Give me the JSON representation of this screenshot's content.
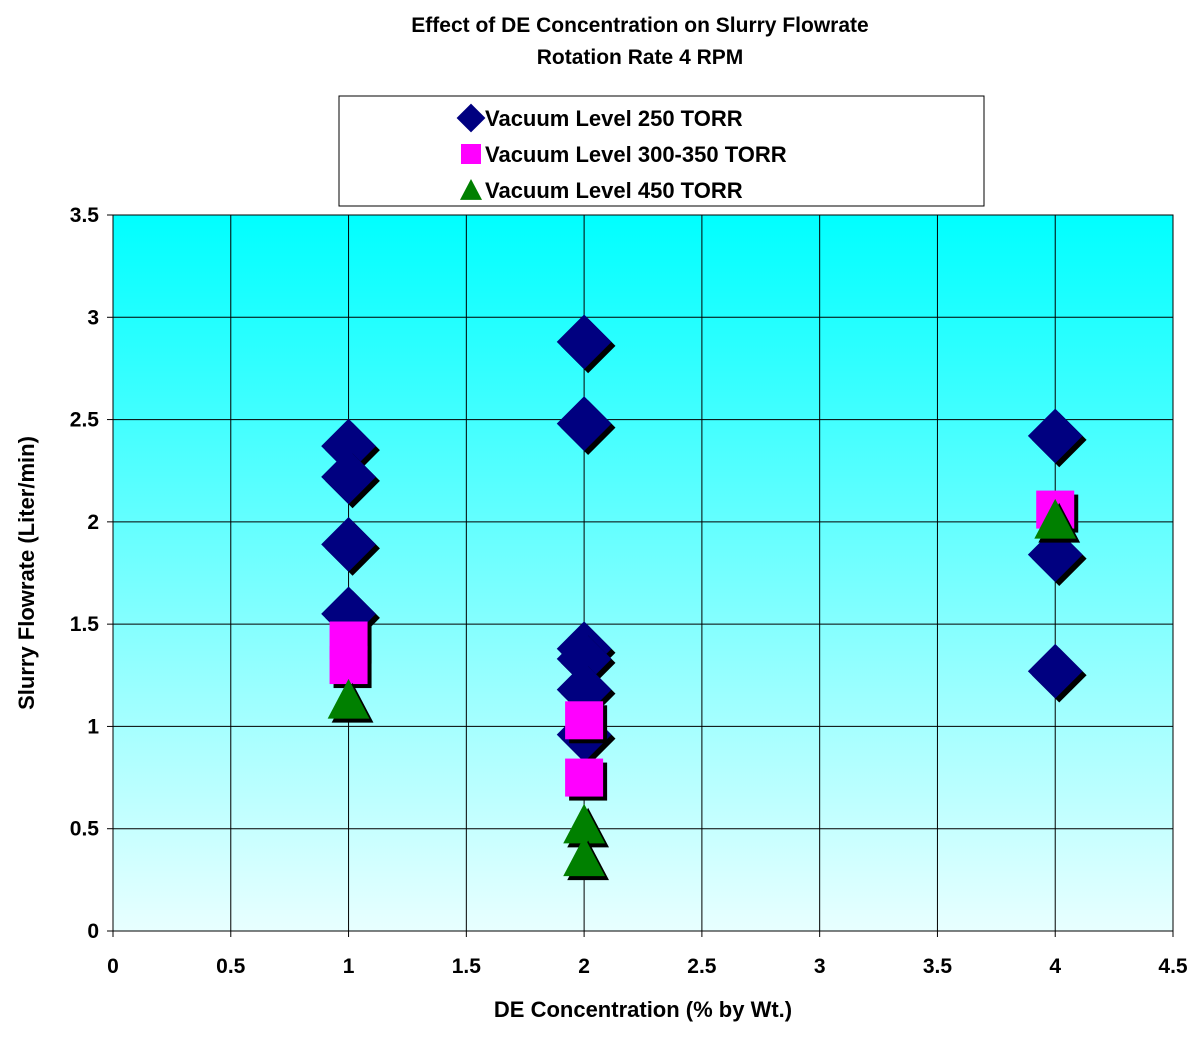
{
  "chart_data": {
    "type": "scatter",
    "title": "Effect of DE Concentration on Slurry Flowrate",
    "subtitle": "Rotation Rate 4 RPM",
    "xlabel": "DE Concentration (% by Wt.)",
    "ylabel": "Slurry Flowrate (Liter/min)",
    "xlim": [
      0,
      4.5
    ],
    "ylim": [
      0,
      3.5
    ],
    "xticks": [
      "0",
      "0.5",
      "1",
      "1.5",
      "2",
      "2.5",
      "3",
      "3.5",
      "4",
      "4.5"
    ],
    "yticks": [
      "0",
      "0.5",
      "1",
      "1.5",
      "2",
      "2.5",
      "3",
      "3.5"
    ],
    "grid": true,
    "legend_position": "top-center",
    "background_gradient": [
      "#00ffff",
      "#e8ffff"
    ],
    "series": [
      {
        "name": "Vacuum Level 250 TORR",
        "marker": "diamond",
        "color": "#000080",
        "points": [
          {
            "x": 1,
            "y": 2.37
          },
          {
            "x": 1,
            "y": 2.22
          },
          {
            "x": 1,
            "y": 1.89
          },
          {
            "x": 1,
            "y": 1.55
          },
          {
            "x": 2,
            "y": 2.88
          },
          {
            "x": 2,
            "y": 2.48
          },
          {
            "x": 2,
            "y": 1.38
          },
          {
            "x": 2,
            "y": 1.33
          },
          {
            "x": 2,
            "y": 1.18
          },
          {
            "x": 2,
            "y": 0.96
          },
          {
            "x": 4,
            "y": 2.42
          },
          {
            "x": 4,
            "y": 1.84
          },
          {
            "x": 4,
            "y": 1.27
          }
        ]
      },
      {
        "name": "Vacuum Level 300-350 TORR",
        "marker": "square",
        "color": "#ff00ff",
        "points": [
          {
            "x": 1,
            "y": 1.42
          },
          {
            "x": 1,
            "y": 1.3
          },
          {
            "x": 2,
            "y": 1.03
          },
          {
            "x": 2,
            "y": 0.75
          },
          {
            "x": 4,
            "y": 2.06
          }
        ]
      },
      {
        "name": "Vacuum Level 450 TORR",
        "marker": "triangle",
        "color": "#008000",
        "points": [
          {
            "x": 1,
            "y": 1.13
          },
          {
            "x": 2,
            "y": 0.52
          },
          {
            "x": 2,
            "y": 0.36
          },
          {
            "x": 4,
            "y": 2.01
          }
        ]
      }
    ]
  }
}
